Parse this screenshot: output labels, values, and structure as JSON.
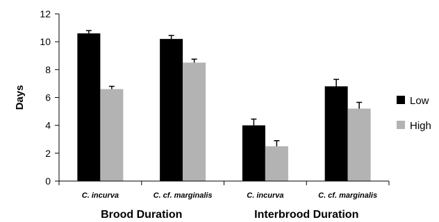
{
  "chart_data": {
    "type": "bar",
    "ylabel": "Days",
    "ylim": [
      0,
      12
    ],
    "yticks": [
      0,
      2,
      4,
      6,
      8,
      10,
      12
    ],
    "categories": [
      "C. incurva",
      "C. cf. marginalis",
      "C. incurva",
      "C. cf. marginalis"
    ],
    "groups": [
      "Brood Duration",
      "Interbrood Duration"
    ],
    "series": [
      {
        "name": "Low",
        "color": "#000000",
        "values": [
          10.6,
          10.2,
          4.0,
          6.8
        ],
        "errors": [
          0.2,
          0.25,
          0.45,
          0.5
        ]
      },
      {
        "name": "High",
        "color": "#b3b3b3",
        "values": [
          6.6,
          8.5,
          2.5,
          5.2
        ],
        "errors": [
          0.2,
          0.25,
          0.4,
          0.45
        ]
      }
    ],
    "legend_position": "right",
    "grid": false
  }
}
